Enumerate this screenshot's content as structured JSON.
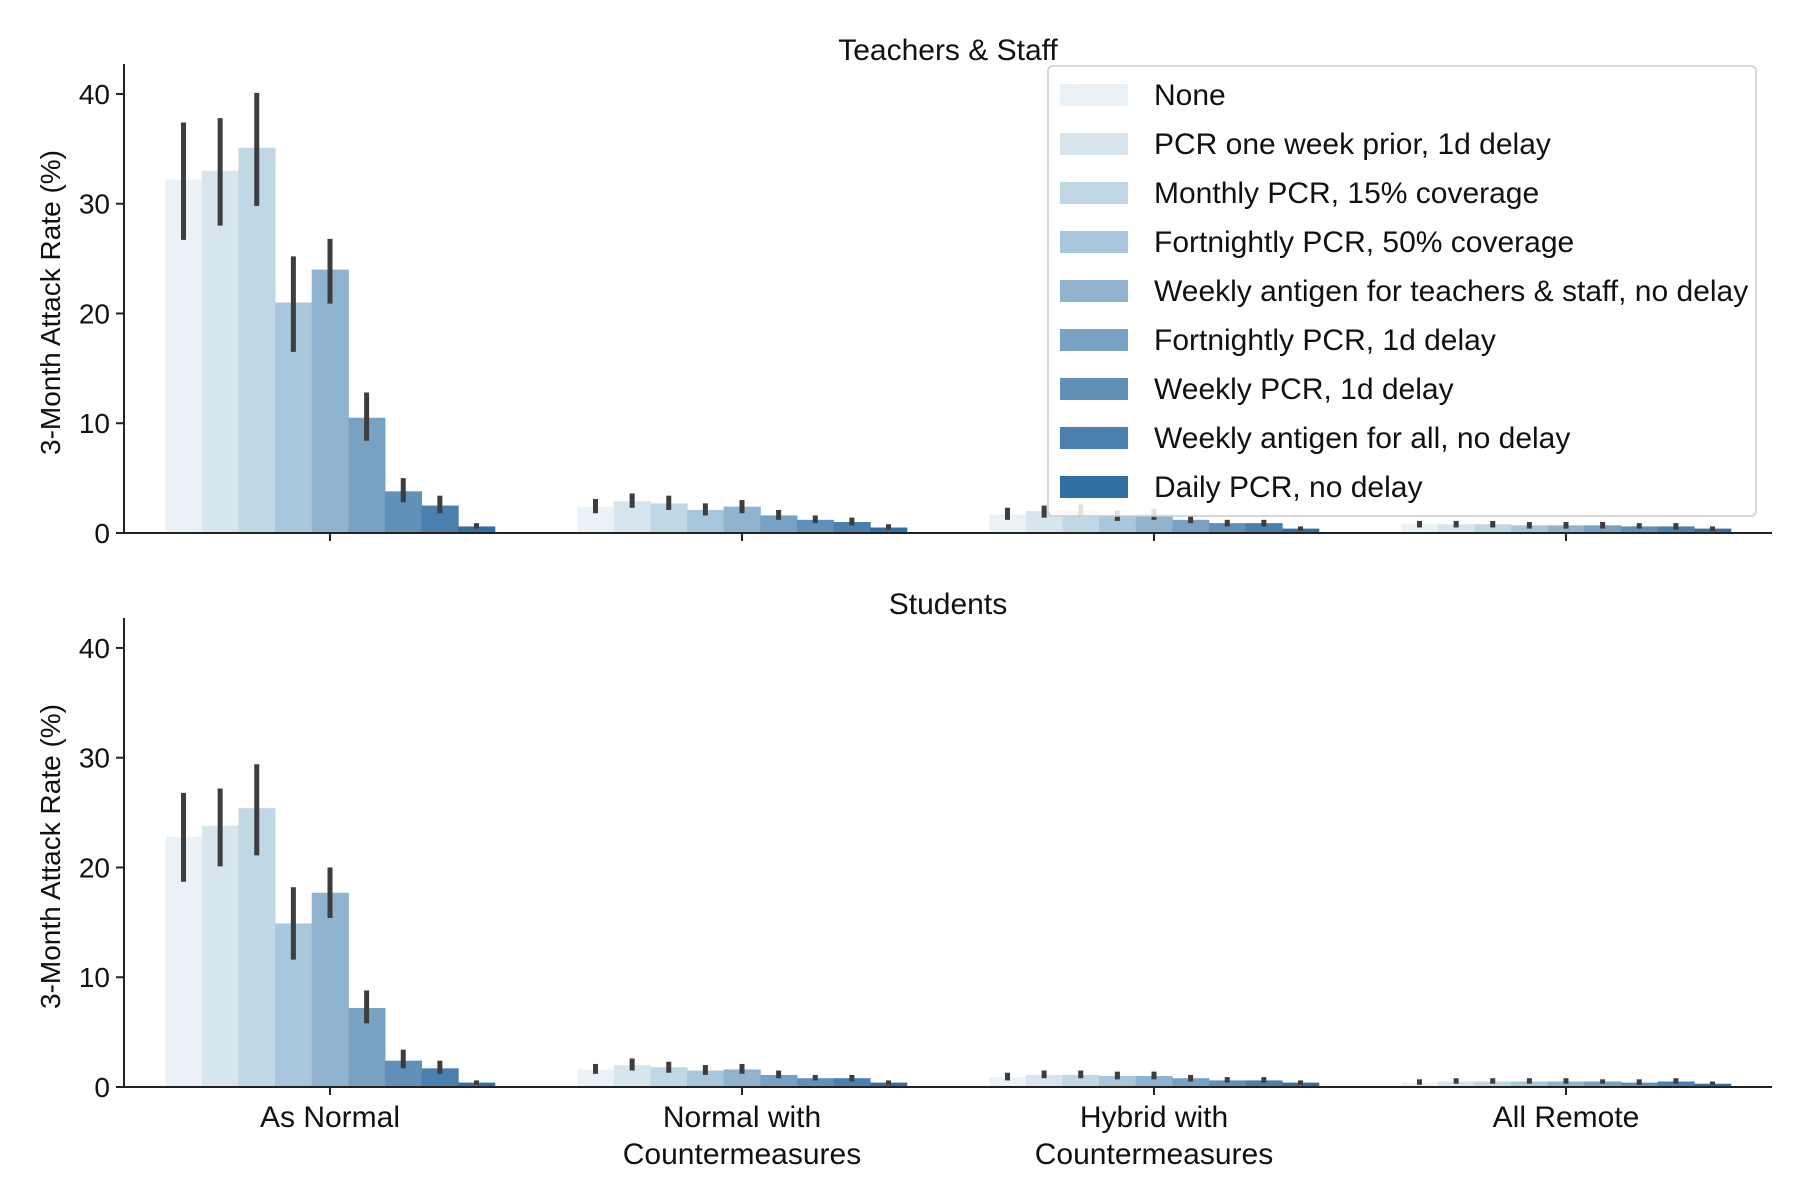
{
  "chart_data": [
    {
      "type": "bar",
      "title": "Teachers & Staff",
      "xlabel": "",
      "ylabel": "3-Month Attack Rate (%)",
      "ylim": [
        0,
        42
      ],
      "yticks": [
        "0",
        "10",
        "20",
        "30",
        "40"
      ],
      "categories": [
        "As Normal",
        "Normal with Countermeasures",
        "Hybrid with Countermeasures",
        "All Remote"
      ],
      "legend_position": "top-right",
      "series": [
        {
          "name": "None",
          "color": "#ebf2f7",
          "values": [
            32.2,
            2.4,
            1.7,
            0.8
          ],
          "ci": [
            [
              26.7,
              37.4
            ],
            [
              1.8,
              3.1
            ],
            [
              1.2,
              2.3
            ],
            [
              0.5,
              1.1
            ]
          ]
        },
        {
          "name": "PCR one week prior, 1d delay",
          "color": "#d7e5ef",
          "values": [
            33.0,
            2.9,
            2.0,
            0.8
          ],
          "ci": [
            [
              28.0,
              37.8
            ],
            [
              2.3,
              3.6
            ],
            [
              1.4,
              2.5
            ],
            [
              0.5,
              1.1
            ]
          ]
        },
        {
          "name": "Monthly PCR, 15% coverage",
          "color": "#c0d7e6",
          "values": [
            35.1,
            2.7,
            2.0,
            0.8
          ],
          "ci": [
            [
              29.8,
              40.1
            ],
            [
              2.1,
              3.4
            ],
            [
              1.5,
              2.6
            ],
            [
              0.5,
              1.1
            ]
          ]
        },
        {
          "name": "Fortnightly PCR, 50% coverage",
          "color": "#a8c6dc",
          "values": [
            21.0,
            2.1,
            1.6,
            0.7
          ],
          "ci": [
            [
              16.5,
              25.2
            ],
            [
              1.6,
              2.7
            ],
            [
              1.1,
              2.1
            ],
            [
              0.4,
              1.0
            ]
          ]
        },
        {
          "name": "Weekly antigen for teachers & staff, no delay",
          "color": "#90b4cf",
          "values": [
            24.0,
            2.4,
            1.7,
            0.7
          ],
          "ci": [
            [
              20.9,
              26.8
            ],
            [
              1.8,
              3.0
            ],
            [
              1.2,
              2.2
            ],
            [
              0.4,
              1.0
            ]
          ]
        },
        {
          "name": "Fortnightly PCR, 1d delay",
          "color": "#78a2c3",
          "values": [
            10.5,
            1.6,
            1.2,
            0.7
          ],
          "ci": [
            [
              8.4,
              12.8
            ],
            [
              1.2,
              2.1
            ],
            [
              0.9,
              1.6
            ],
            [
              0.4,
              1.0
            ]
          ]
        },
        {
          "name": "Weekly PCR, 1d delay",
          "color": "#6191b8",
          "values": [
            3.8,
            1.2,
            0.9,
            0.6
          ],
          "ci": [
            [
              2.8,
              5.0
            ],
            [
              0.9,
              1.6
            ],
            [
              0.6,
              1.2
            ],
            [
              0.4,
              0.9
            ]
          ]
        },
        {
          "name": "Weekly antigen for all, no delay",
          "color": "#4a80ad",
          "values": [
            2.5,
            1.0,
            0.9,
            0.6
          ],
          "ci": [
            [
              1.8,
              3.4
            ],
            [
              0.7,
              1.4
            ],
            [
              0.6,
              1.2
            ],
            [
              0.3,
              0.9
            ]
          ]
        },
        {
          "name": "Daily PCR, no delay",
          "color": "#3370a2",
          "values": [
            0.6,
            0.5,
            0.4,
            0.4
          ],
          "ci": [
            [
              0.4,
              0.9
            ],
            [
              0.3,
              0.8
            ],
            [
              0.2,
              0.6
            ],
            [
              0.2,
              0.6
            ]
          ]
        }
      ]
    },
    {
      "type": "bar",
      "title": "Students",
      "xlabel": "",
      "ylabel": "3-Month Attack Rate (%)",
      "ylim": [
        0,
        42
      ],
      "yticks": [
        "0",
        "10",
        "20",
        "30",
        "40"
      ],
      "categories": [
        "As Normal",
        "Normal with Countermeasures",
        "Hybrid with Countermeasures",
        "All Remote"
      ],
      "category_labels": [
        [
          "As Normal"
        ],
        [
          "Normal with",
          "Countermeasures"
        ],
        [
          "Hybrid with",
          "Countermeasures"
        ],
        [
          "All Remote"
        ]
      ],
      "series": [
        {
          "name": "None",
          "color": "#ebf2f7",
          "values": [
            22.8,
            1.6,
            0.9,
            0.4
          ],
          "ci": [
            [
              18.7,
              26.8
            ],
            [
              1.2,
              2.1
            ],
            [
              0.6,
              1.3
            ],
            [
              0.2,
              0.7
            ]
          ]
        },
        {
          "name": "PCR one week prior, 1d delay",
          "color": "#d7e5ef",
          "values": [
            23.8,
            2.0,
            1.1,
            0.5
          ],
          "ci": [
            [
              20.1,
              27.2
            ],
            [
              1.5,
              2.6
            ],
            [
              0.8,
              1.5
            ],
            [
              0.3,
              0.8
            ]
          ]
        },
        {
          "name": "Monthly PCR, 15% coverage",
          "color": "#c0d7e6",
          "values": [
            25.4,
            1.8,
            1.1,
            0.5
          ],
          "ci": [
            [
              21.1,
              29.4
            ],
            [
              1.3,
              2.3
            ],
            [
              0.8,
              1.5
            ],
            [
              0.3,
              0.8
            ]
          ]
        },
        {
          "name": "Fortnightly PCR, 50% coverage",
          "color": "#a8c6dc",
          "values": [
            14.9,
            1.5,
            1.0,
            0.5
          ],
          "ci": [
            [
              11.6,
              18.2
            ],
            [
              1.1,
              2.0
            ],
            [
              0.7,
              1.4
            ],
            [
              0.3,
              0.8
            ]
          ]
        },
        {
          "name": "Weekly antigen for teachers & staff, no delay",
          "color": "#90b4cf",
          "values": [
            17.7,
            1.6,
            1.0,
            0.5
          ],
          "ci": [
            [
              15.4,
              20.0
            ],
            [
              1.2,
              2.1
            ],
            [
              0.7,
              1.4
            ],
            [
              0.3,
              0.8
            ]
          ]
        },
        {
          "name": "Fortnightly PCR, 1d delay",
          "color": "#78a2c3",
          "values": [
            7.2,
            1.1,
            0.8,
            0.5
          ],
          "ci": [
            [
              5.8,
              8.8
            ],
            [
              0.8,
              1.5
            ],
            [
              0.5,
              1.1
            ],
            [
              0.3,
              0.7
            ]
          ]
        },
        {
          "name": "Weekly PCR, 1d delay",
          "color": "#6191b8",
          "values": [
            2.4,
            0.8,
            0.6,
            0.4
          ],
          "ci": [
            [
              1.7,
              3.4
            ],
            [
              0.6,
              1.1
            ],
            [
              0.4,
              0.9
            ],
            [
              0.2,
              0.7
            ]
          ]
        },
        {
          "name": "Weekly antigen for all, no delay",
          "color": "#4a80ad",
          "values": [
            1.7,
            0.8,
            0.6,
            0.5
          ],
          "ci": [
            [
              1.2,
              2.4
            ],
            [
              0.5,
              1.1
            ],
            [
              0.4,
              0.9
            ],
            [
              0.3,
              0.8
            ]
          ]
        },
        {
          "name": "Daily PCR, no delay",
          "color": "#3370a2",
          "values": [
            0.4,
            0.4,
            0.4,
            0.3
          ],
          "ci": [
            [
              0.2,
              0.6
            ],
            [
              0.2,
              0.6
            ],
            [
              0.2,
              0.6
            ],
            [
              0.2,
              0.5
            ]
          ]
        }
      ]
    }
  ]
}
